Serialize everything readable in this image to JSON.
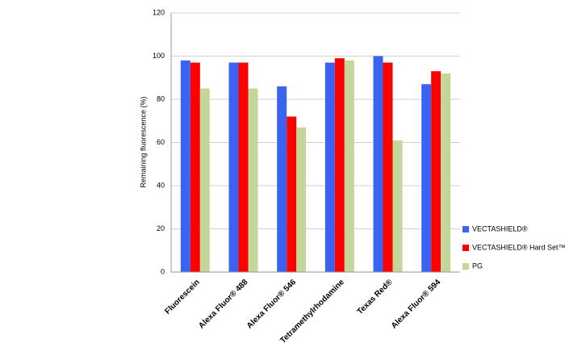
{
  "chart_data": {
    "type": "bar",
    "y_label": "Remaining fluorescence (%)",
    "categories": [
      "Fluorescein",
      "Alexa Fluor® 488",
      "Alexa Fluor® 546",
      "Tetramethylrhodamine",
      "Texas Red®",
      "Alexa Fluor® 594"
    ],
    "series": [
      {
        "name": "VECTASHIELD®",
        "color": "#3b63f2",
        "values": [
          98,
          97,
          86,
          97,
          100,
          87
        ]
      },
      {
        "name": "VECTASHIELD® Hard Set™",
        "color": "#ff0000",
        "values": [
          97,
          97,
          72,
          99,
          97,
          93
        ]
      },
      {
        "name": "PG",
        "color": "#c4d79b",
        "values": [
          85,
          85,
          67,
          98,
          61,
          92
        ]
      }
    ],
    "ylim": [
      0,
      120
    ],
    "yticks": [
      0,
      20,
      40,
      60,
      80,
      100,
      120
    ],
    "grid": true,
    "legend": "right"
  }
}
